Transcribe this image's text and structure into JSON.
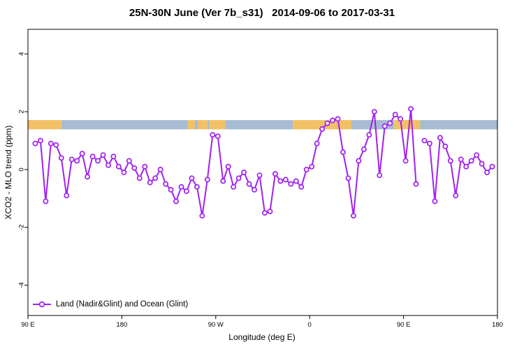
{
  "figure": {
    "title": "25N-30N June (Ver 7b_s31)   2014-09-06 to 2017-03-31",
    "xlabel": "Longitude (deg E)",
    "ylabel": "XCO2 - MLO trend (ppm)",
    "legend_label": "Land (Nadir&Glint) and Ocean (Glint)"
  },
  "chart_data": {
    "type": "line",
    "title": "25N-30N June (Ver 7b_s31)   2014-09-06 to 2017-03-31",
    "xlabel": "Longitude (deg E)",
    "ylabel": "XCO2 - MLO trend (ppm)",
    "legend_position": "bottom-left-inside",
    "grid": false,
    "x_axis": {
      "min": 90,
      "max": 540,
      "ticks": [
        90,
        180,
        270,
        360,
        450,
        540
      ],
      "tick_labels": [
        "90 E",
        "180",
        "90 W",
        "0",
        "90 E",
        "180"
      ]
    },
    "y_axis": {
      "min": -5.05,
      "max": 4.85,
      "ticks": [
        -4,
        -2,
        0,
        2,
        4
      ],
      "tick_labels": [
        "-4",
        "-2",
        "0",
        "2",
        "4"
      ]
    },
    "colors": {
      "series": "#A020F0",
      "band_land": "#F2C166",
      "band_ocean": "#A7BCD3"
    },
    "band": {
      "description": "horizontal land/ocean indicator strip",
      "y_center": 1.55,
      "y_half_height": 0.16,
      "segments": [
        {
          "from": 90,
          "to": 122,
          "type": "land"
        },
        {
          "from": 122,
          "to": 243,
          "type": "ocean"
        },
        {
          "from": 243,
          "to": 250,
          "type": "land"
        },
        {
          "from": 250,
          "to": 253,
          "type": "ocean"
        },
        {
          "from": 253,
          "to": 262,
          "type": "land"
        },
        {
          "from": 262,
          "to": 264,
          "type": "ocean"
        },
        {
          "from": 264,
          "to": 279,
          "type": "land"
        },
        {
          "from": 279,
          "to": 344,
          "type": "ocean"
        },
        {
          "from": 344,
          "to": 400,
          "type": "land"
        },
        {
          "from": 400,
          "to": 441,
          "type": "ocean"
        },
        {
          "from": 441,
          "to": 466,
          "type": "land"
        },
        {
          "from": 466,
          "to": 540,
          "type": "ocean"
        }
      ]
    },
    "series": [
      {
        "name": "Land (Nadir&Glint) and Ocean (Glint)",
        "marker": "open-circle",
        "segments": [
          [
            [
              97,
              0.9
            ],
            [
              102,
              1.0
            ],
            [
              107,
              -1.1
            ],
            [
              112,
              0.9
            ],
            [
              117,
              0.85
            ],
            [
              122,
              0.4
            ],
            [
              127,
              -0.9
            ],
            [
              132,
              0.35
            ],
            [
              137,
              0.3
            ],
            [
              142,
              0.55
            ],
            [
              147,
              -0.25
            ],
            [
              152,
              0.45
            ],
            [
              157,
              0.3
            ],
            [
              162,
              0.5
            ],
            [
              167,
              0.15
            ],
            [
              172,
              0.45
            ],
            [
              177,
              0.1
            ],
            [
              182,
              -0.1
            ],
            [
              187,
              0.3
            ],
            [
              192,
              0.05
            ],
            [
              197,
              -0.3
            ],
            [
              202,
              0.1
            ],
            [
              207,
              -0.45
            ],
            [
              212,
              -0.3
            ],
            [
              217,
              0.0
            ],
            [
              222,
              -0.5
            ],
            [
              227,
              -0.7
            ],
            [
              232,
              -1.1
            ],
            [
              237,
              -0.6
            ],
            [
              242,
              -0.75
            ],
            [
              247,
              -0.3
            ],
            [
              252,
              -0.6
            ],
            [
              257,
              -1.6
            ],
            [
              262,
              -0.35
            ],
            [
              267,
              1.2
            ],
            [
              272,
              1.15
            ],
            [
              277,
              -0.4
            ],
            [
              282,
              0.1
            ],
            [
              287,
              -0.6
            ],
            [
              292,
              -0.3
            ],
            [
              297,
              -0.1
            ],
            [
              302,
              -0.5
            ],
            [
              307,
              -0.7
            ],
            [
              312,
              -0.2
            ],
            [
              317,
              -1.5
            ],
            [
              322,
              -1.45
            ],
            [
              327,
              -0.15
            ],
            [
              332,
              -0.4
            ],
            [
              337,
              -0.35
            ],
            [
              342,
              -0.5
            ],
            [
              347,
              -0.4
            ],
            [
              352,
              -0.6
            ],
            [
              357,
              0.0
            ],
            [
              362,
              0.1
            ],
            [
              367,
              0.9
            ],
            [
              372,
              1.4
            ],
            [
              377,
              1.6
            ],
            [
              382,
              1.7
            ],
            [
              387,
              1.75
            ],
            [
              392,
              0.6
            ],
            [
              397,
              -0.3
            ],
            [
              402,
              -1.6
            ],
            [
              407,
              0.3
            ],
            [
              412,
              0.7
            ],
            [
              417,
              1.2
            ],
            [
              422,
              2.0
            ],
            [
              427,
              -0.2
            ],
            [
              432,
              1.5
            ],
            [
              437,
              1.6
            ],
            [
              442,
              1.9
            ],
            [
              447,
              1.75
            ],
            [
              452,
              0.3
            ],
            [
              457,
              2.1
            ],
            [
              462,
              -0.5
            ]
          ],
          [
            [
              470,
              1.0
            ],
            [
              475,
              0.9
            ],
            [
              480,
              -1.1
            ],
            [
              485,
              1.1
            ],
            [
              490,
              0.8
            ],
            [
              495,
              0.3
            ],
            [
              500,
              -0.9
            ],
            [
              505,
              0.35
            ],
            [
              510,
              0.1
            ],
            [
              515,
              0.3
            ],
            [
              520,
              0.5
            ],
            [
              525,
              0.2
            ],
            [
              530,
              -0.1
            ],
            [
              535,
              0.1
            ]
          ]
        ]
      }
    ]
  }
}
